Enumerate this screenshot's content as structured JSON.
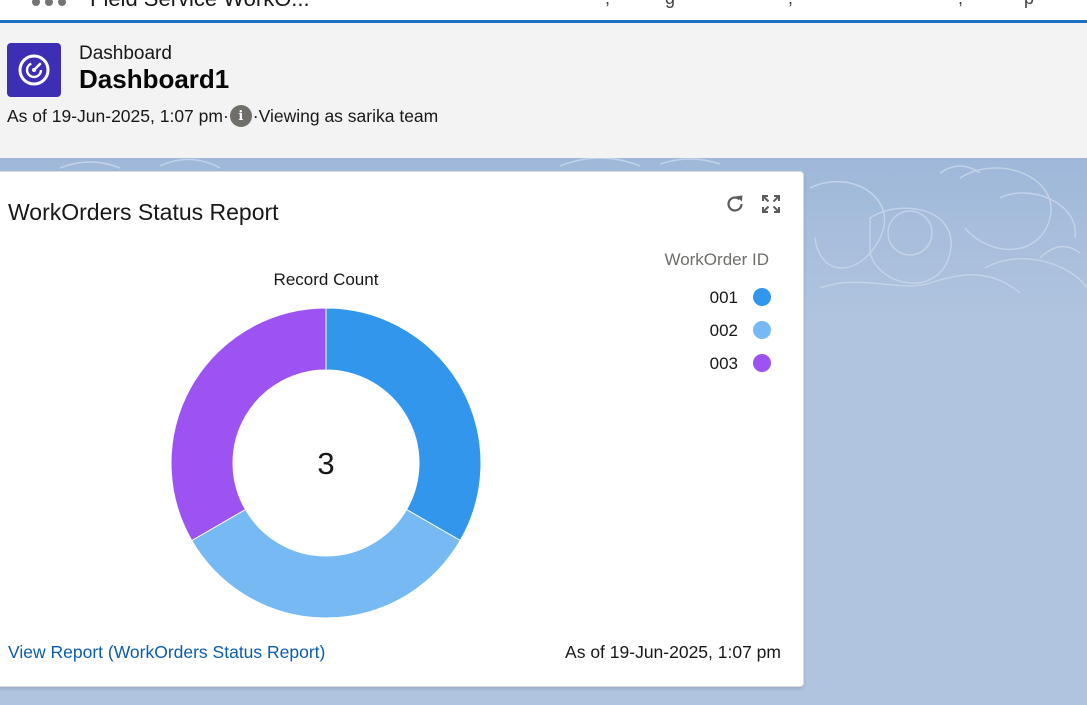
{
  "topnav": {
    "app_name": "Field Service WorkO...",
    "icons": {
      "launcher": "app-launcher-icon"
    }
  },
  "header": {
    "kicker": "Dashboard",
    "title": "Dashboard1",
    "as_of": "As of 19-Jun-2025, 1:07 pm",
    "separator": "·",
    "viewing_as": "·Viewing as sarika team",
    "icons": {
      "app": "dashboard-gauge-icon",
      "info": "info-icon"
    },
    "colors": {
      "app_icon_bg": "#3d2fb5"
    }
  },
  "card": {
    "title": "WorkOrders Status Report",
    "icons": {
      "refresh": "refresh-icon",
      "expand": "expand-icon"
    },
    "view_report_link": "View Report (WorkOrders Status Report)",
    "as_of": "As of 19-Jun-2025, 1:07 pm"
  },
  "chart_data": {
    "type": "pie",
    "variant": "donut",
    "title": "Record Count",
    "center_label": "3",
    "legend_title": "WorkOrder ID",
    "legend_position": "top-right",
    "categories": [
      "001",
      "002",
      "003"
    ],
    "values": [
      1,
      1,
      1
    ],
    "colors": [
      "#3296ed",
      "#77b9f2",
      "#9d53f2"
    ]
  }
}
